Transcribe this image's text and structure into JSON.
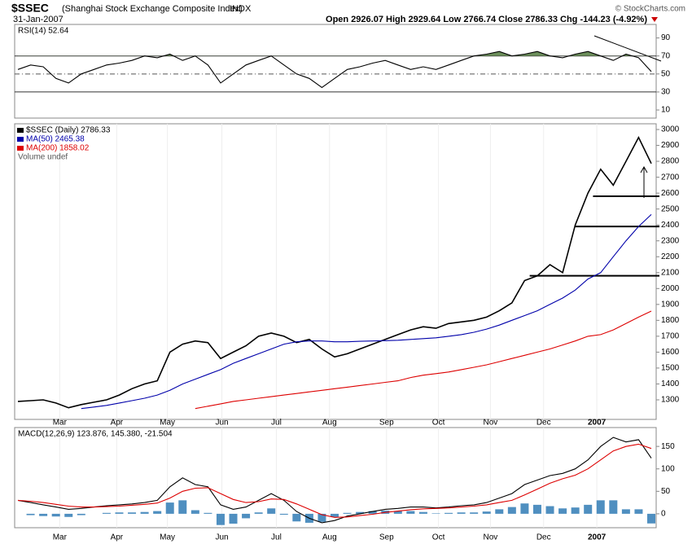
{
  "header": {
    "title": "$SSEC",
    "subtitle": "(Shanghai Stock Exchange Composite Index)",
    "exchange": "INDX",
    "date": "31-Jan-2007",
    "quote": "Open 2926.07  High 2929.64  Low 2766.74  Close 2786.33  Chg -144.23 (-4.92%)",
    "copyright": "© StockCharts.com"
  },
  "chart_data": [
    {
      "type": "line",
      "title": "RSI(14) 52.64",
      "xlim": [
        0,
        50
      ],
      "ylim": [
        1,
        105
      ],
      "yticks": [
        10,
        30,
        50,
        70,
        90
      ],
      "fill_above": 70,
      "fill_color": "#6b8e5a",
      "levels": [
        70,
        30
      ],
      "dashed_level": 50,
      "series": [
        {
          "name": "RSI(14)",
          "color": "#000000",
          "values": [
            55,
            60,
            58,
            45,
            40,
            50,
            55,
            60,
            62,
            65,
            70,
            68,
            72,
            65,
            70,
            60,
            40,
            50,
            60,
            65,
            70,
            60,
            50,
            45,
            35,
            45,
            55,
            58,
            62,
            65,
            60,
            55,
            58,
            55,
            60,
            65,
            70,
            72,
            75,
            70,
            72,
            75,
            70,
            68,
            72,
            75,
            70,
            65,
            72,
            68,
            52.64
          ]
        }
      ]
    },
    {
      "type": "line",
      "xlim": [
        0,
        50
      ],
      "ylim": [
        1177,
        3036
      ],
      "yticks": [
        1300,
        1400,
        1500,
        1600,
        1700,
        1800,
        1900,
        2000,
        2100,
        2200,
        2300,
        2400,
        2500,
        2600,
        2700,
        2800,
        2900,
        3000
      ],
      "xticks": [
        {
          "value": 3.3,
          "label": "Mar"
        },
        {
          "value": 7.8,
          "label": "Apr"
        },
        {
          "value": 11.8,
          "label": "May"
        },
        {
          "value": 16.1,
          "label": "Jun"
        },
        {
          "value": 20.4,
          "label": "Jul"
        },
        {
          "value": 24.6,
          "label": "Aug"
        },
        {
          "value": 29.1,
          "label": "Sep"
        },
        {
          "value": 33.2,
          "label": "Oct"
        },
        {
          "value": 37.3,
          "label": "Nov"
        },
        {
          "value": 41.5,
          "label": "Dec"
        },
        {
          "value": 45.7,
          "label": "2007"
        }
      ],
      "legend_note": "Volume undef",
      "levels": [
        {
          "value": 2080,
          "from": 40.4
        },
        {
          "value": 2390,
          "from": 44
        },
        {
          "value": 2580,
          "from": 45.4
        }
      ],
      "series": [
        {
          "name": "$SSEC (Daily) 2786.33",
          "color": "#000000",
          "values": [
            1290,
            1295,
            1300,
            1280,
            1250,
            1270,
            1285,
            1300,
            1330,
            1370,
            1400,
            1420,
            1600,
            1650,
            1670,
            1660,
            1560,
            1600,
            1640,
            1700,
            1720,
            1700,
            1660,
            1680,
            1620,
            1570,
            1590,
            1620,
            1650,
            1680,
            1710,
            1740,
            1760,
            1750,
            1780,
            1790,
            1800,
            1820,
            1860,
            1910,
            2050,
            2080,
            2150,
            2100,
            2400,
            2600,
            2750,
            2650,
            2800,
            2950,
            2786.33
          ]
        },
        {
          "name": "MA(50) 2465.38",
          "color": "#0000aa",
          "values": [
            null,
            null,
            null,
            null,
            null,
            1245,
            1255,
            1265,
            1280,
            1295,
            1310,
            1330,
            1360,
            1400,
            1430,
            1460,
            1490,
            1530,
            1560,
            1590,
            1620,
            1650,
            1665,
            1670,
            1670,
            1665,
            1665,
            1668,
            1670,
            1672,
            1675,
            1680,
            1685,
            1690,
            1700,
            1710,
            1725,
            1745,
            1770,
            1800,
            1830,
            1860,
            1900,
            1940,
            1990,
            2060,
            2100,
            2200,
            2300,
            2390,
            2465.38
          ]
        },
        {
          "name": "MA(200) 1858.02",
          "color": "#dd0000",
          "values": [
            null,
            null,
            null,
            null,
            null,
            null,
            null,
            null,
            null,
            null,
            null,
            null,
            null,
            null,
            1245,
            1260,
            1275,
            1290,
            1300,
            1310,
            1320,
            1330,
            1340,
            1350,
            1360,
            1370,
            1380,
            1390,
            1400,
            1410,
            1420,
            1440,
            1455,
            1465,
            1475,
            1490,
            1505,
            1520,
            1540,
            1560,
            1580,
            1600,
            1620,
            1645,
            1670,
            1700,
            1710,
            1740,
            1780,
            1820,
            1858.02
          ]
        }
      ]
    },
    {
      "type": "line",
      "title": "MACD(12,26,9) 123.876, 145.380, -21.504",
      "xlim": [
        0,
        50
      ],
      "ylim": [
        -31,
        192
      ],
      "yticks": [
        0,
        50,
        100,
        150
      ],
      "xticks": [
        {
          "value": 3.3,
          "label": "Mar"
        },
        {
          "value": 7.8,
          "label": "Apr"
        },
        {
          "value": 11.8,
          "label": "May"
        },
        {
          "value": 16.1,
          "label": "Jun"
        },
        {
          "value": 20.4,
          "label": "Jul"
        },
        {
          "value": 24.6,
          "label": "Aug"
        },
        {
          "value": 29.1,
          "label": "Sep"
        },
        {
          "value": 33.2,
          "label": "Oct"
        },
        {
          "value": 37.3,
          "label": "Nov"
        },
        {
          "value": 41.5,
          "label": "Dec"
        },
        {
          "value": 45.7,
          "label": "2007"
        }
      ],
      "series": [
        {
          "name": "Histogram",
          "type": "bar",
          "color": "#4f8fc0",
          "values": [
            0,
            -3,
            -5,
            -6,
            -7,
            -3,
            0,
            2,
            3,
            3,
            4,
            6,
            25,
            30,
            8,
            2,
            -25,
            -22,
            -10,
            3,
            12,
            -2,
            -17,
            -20,
            -18,
            -7,
            2,
            4,
            6,
            7,
            6,
            6,
            4,
            1,
            2,
            3,
            3,
            5,
            10,
            15,
            23,
            20,
            17,
            12,
            14,
            20,
            30,
            30,
            10,
            10,
            -21.504
          ]
        },
        {
          "name": "MACD",
          "color": "#000000",
          "values": [
            30,
            25,
            20,
            15,
            10,
            12,
            15,
            18,
            20,
            22,
            25,
            30,
            60,
            80,
            65,
            60,
            20,
            10,
            15,
            30,
            45,
            30,
            5,
            -10,
            -20,
            -15,
            -5,
            0,
            5,
            10,
            12,
            15,
            15,
            13,
            15,
            18,
            20,
            25,
            35,
            45,
            65,
            75,
            85,
            90,
            100,
            120,
            150,
            170,
            160,
            165,
            123.876
          ]
        },
        {
          "name": "Signal",
          "color": "#dd0000",
          "values": [
            30,
            28,
            25,
            21,
            17,
            15,
            15,
            16,
            17,
            19,
            21,
            24,
            35,
            50,
            57,
            58,
            45,
            32,
            25,
            27,
            33,
            32,
            22,
            10,
            -2,
            -8,
            -7,
            -4,
            -1,
            3,
            6,
            9,
            11,
            12,
            13,
            15,
            17,
            20,
            25,
            30,
            42,
            55,
            68,
            78,
            86,
            100,
            120,
            140,
            150,
            155,
            145.38
          ]
        }
      ]
    }
  ]
}
